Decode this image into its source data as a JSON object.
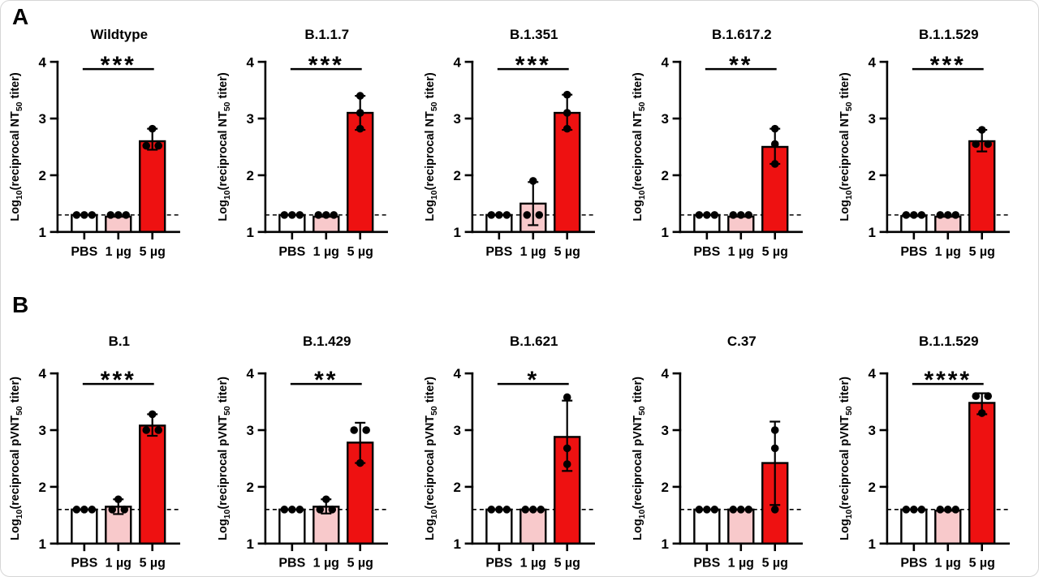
{
  "figure": {
    "background": "#ffffff",
    "sections": [
      {
        "label": "A"
      },
      {
        "label": "B"
      }
    ]
  },
  "colors": {
    "bar_pbs": "#ffffff",
    "bar_1ug": "#f8c9cb",
    "bar_5ug": "#ee1111",
    "axis": "#000000",
    "point": "#000000",
    "dashed_line": "#000000",
    "text": "#000000"
  },
  "chart_data": [
    {
      "row": "A",
      "type": "bar",
      "title": "Wildtype",
      "significance": "***",
      "ylabel": "Log10(reciprocal NT50 titer)",
      "ylabel_parts": [
        {
          "t": "Log",
          "sub": false
        },
        {
          "t": "10",
          "sub": true
        },
        {
          "t": "(reciprocal NT",
          "sub": false
        },
        {
          "t": "50",
          "sub": true
        },
        {
          "t": " titer)",
          "sub": false
        }
      ],
      "ylim": [
        1,
        4
      ],
      "yticks": [
        1,
        2,
        3,
        4
      ],
      "dashed_line_y": 1.3,
      "categories": [
        "PBS",
        "1 µg",
        "5 µg"
      ],
      "bars": [
        {
          "category": "PBS",
          "value": 1.3,
          "fill": "bar_pbs",
          "points": [
            1.3,
            1.3,
            1.3
          ],
          "err": null
        },
        {
          "category": "1 µg",
          "value": 1.27,
          "fill": "bar_1ug",
          "points": [
            1.3,
            1.3,
            1.3
          ],
          "err": null
        },
        {
          "category": "5 µg",
          "value": 2.6,
          "fill": "bar_5ug",
          "points": [
            2.52,
            2.52,
            2.82
          ],
          "err": [
            2.45,
            2.82
          ]
        }
      ]
    },
    {
      "row": "A",
      "type": "bar",
      "title": "B.1.1.7",
      "significance": "***",
      "ylabel": "Log10(reciprocal NT50 titer)",
      "ylabel_parts": [
        {
          "t": "Log",
          "sub": false
        },
        {
          "t": "10",
          "sub": true
        },
        {
          "t": "(reciprocal NT",
          "sub": false
        },
        {
          "t": "50",
          "sub": true
        },
        {
          "t": " titer)",
          "sub": false
        }
      ],
      "ylim": [
        1,
        4
      ],
      "yticks": [
        1,
        2,
        3,
        4
      ],
      "dashed_line_y": 1.3,
      "categories": [
        "PBS",
        "1 µg",
        "5 µg"
      ],
      "bars": [
        {
          "category": "PBS",
          "value": 1.3,
          "fill": "bar_pbs",
          "points": [
            1.3,
            1.3,
            1.3
          ],
          "err": null
        },
        {
          "category": "1 µg",
          "value": 1.27,
          "fill": "bar_1ug",
          "points": [
            1.3,
            1.3,
            1.3
          ],
          "err": null
        },
        {
          "category": "5 µg",
          "value": 3.1,
          "fill": "bar_5ug",
          "points": [
            2.82,
            3.1,
            3.4
          ],
          "err": [
            2.8,
            3.4
          ]
        }
      ]
    },
    {
      "row": "A",
      "type": "bar",
      "title": "B.1.351",
      "significance": "***",
      "ylabel": "Log10(reciprocal NT50 titer)",
      "ylabel_parts": [
        {
          "t": "Log",
          "sub": false
        },
        {
          "t": "10",
          "sub": true
        },
        {
          "t": "(reciprocal NT",
          "sub": false
        },
        {
          "t": "50",
          "sub": true
        },
        {
          "t": " titer)",
          "sub": false
        }
      ],
      "ylim": [
        1,
        4
      ],
      "yticks": [
        1,
        2,
        3,
        4
      ],
      "dashed_line_y": 1.3,
      "categories": [
        "PBS",
        "1 µg",
        "5 µg"
      ],
      "bars": [
        {
          "category": "PBS",
          "value": 1.3,
          "fill": "bar_pbs",
          "points": [
            1.3,
            1.3,
            1.3
          ],
          "err": null
        },
        {
          "category": "1 µg",
          "value": 1.5,
          "fill": "bar_1ug",
          "points": [
            1.3,
            1.3,
            1.9
          ],
          "err": [
            1.12,
            1.88
          ]
        },
        {
          "category": "5 µg",
          "value": 3.1,
          "fill": "bar_5ug",
          "points": [
            2.82,
            3.1,
            3.42
          ],
          "err": [
            2.8,
            3.42
          ]
        }
      ]
    },
    {
      "row": "A",
      "type": "bar",
      "title": "B.1.617.2",
      "significance": "**",
      "ylabel": "Log10(reciprocal NT50 titer)",
      "ylabel_parts": [
        {
          "t": "Log",
          "sub": false
        },
        {
          "t": "10",
          "sub": true
        },
        {
          "t": "(reciprocal NT",
          "sub": false
        },
        {
          "t": "50",
          "sub": true
        },
        {
          "t": " titer)",
          "sub": false
        }
      ],
      "ylim": [
        1,
        4
      ],
      "yticks": [
        1,
        2,
        3,
        4
      ],
      "dashed_line_y": 1.3,
      "categories": [
        "PBS",
        "1 µg",
        "5 µg"
      ],
      "bars": [
        {
          "category": "PBS",
          "value": 1.3,
          "fill": "bar_pbs",
          "points": [
            1.3,
            1.3,
            1.3
          ],
          "err": null
        },
        {
          "category": "1 µg",
          "value": 1.27,
          "fill": "bar_1ug",
          "points": [
            1.3,
            1.3,
            1.3
          ],
          "err": null
        },
        {
          "category": "5 µg",
          "value": 2.5,
          "fill": "bar_5ug",
          "points": [
            2.2,
            2.55,
            2.82
          ],
          "err": [
            2.2,
            2.82
          ]
        }
      ]
    },
    {
      "row": "A",
      "type": "bar",
      "title": "B.1.1.529",
      "significance": "***",
      "ylabel": "Log10(reciprocal NT50 titer)",
      "ylabel_parts": [
        {
          "t": "Log",
          "sub": false
        },
        {
          "t": "10",
          "sub": true
        },
        {
          "t": "(reciprocal NT",
          "sub": false
        },
        {
          "t": "50",
          "sub": true
        },
        {
          "t": " titer)",
          "sub": false
        }
      ],
      "ylim": [
        1,
        4
      ],
      "yticks": [
        1,
        2,
        3,
        4
      ],
      "dashed_line_y": 1.3,
      "categories": [
        "PBS",
        "1 µg",
        "5 µg"
      ],
      "bars": [
        {
          "category": "PBS",
          "value": 1.28,
          "fill": "bar_pbs",
          "points": [
            1.3,
            1.3,
            1.3
          ],
          "err": null
        },
        {
          "category": "1 µg",
          "value": 1.27,
          "fill": "bar_1ug",
          "points": [
            1.3,
            1.3,
            1.3
          ],
          "err": null
        },
        {
          "category": "5 µg",
          "value": 2.6,
          "fill": "bar_5ug",
          "points": [
            2.55,
            2.55,
            2.8
          ],
          "err": [
            2.42,
            2.8
          ]
        }
      ]
    },
    {
      "row": "B",
      "type": "bar",
      "title": "B.1",
      "significance": "***",
      "ylabel": "Log10(reciprocal pVNT50 titer)",
      "ylabel_parts": [
        {
          "t": "Log",
          "sub": false
        },
        {
          "t": "10",
          "sub": true
        },
        {
          "t": "(reciprocal pVNT",
          "sub": false
        },
        {
          "t": "50",
          "sub": true
        },
        {
          "t": " titer)",
          "sub": false
        }
      ],
      "ylim": [
        1,
        4
      ],
      "yticks": [
        1,
        2,
        3,
        4
      ],
      "dashed_line_y": 1.6,
      "categories": [
        "PBS",
        "1 µg",
        "5 µg"
      ],
      "bars": [
        {
          "category": "PBS",
          "value": 1.6,
          "fill": "bar_pbs",
          "points": [
            1.6,
            1.6,
            1.6
          ],
          "err": null
        },
        {
          "category": "1 µg",
          "value": 1.65,
          "fill": "bar_1ug",
          "points": [
            1.6,
            1.6,
            1.78
          ],
          "err": [
            1.52,
            1.78
          ]
        },
        {
          "category": "5 µg",
          "value": 3.08,
          "fill": "bar_5ug",
          "points": [
            3.0,
            3.0,
            3.28
          ],
          "err": [
            2.9,
            3.28
          ]
        }
      ]
    },
    {
      "row": "B",
      "type": "bar",
      "title": "B.1.429",
      "significance": "**",
      "ylabel": "Log10(reciprocal pVNT50 titer)",
      "ylabel_parts": [
        {
          "t": "Log",
          "sub": false
        },
        {
          "t": "10",
          "sub": true
        },
        {
          "t": "(reciprocal pVNT",
          "sub": false
        },
        {
          "t": "50",
          "sub": true
        },
        {
          "t": " titer)",
          "sub": false
        }
      ],
      "ylim": [
        1,
        4
      ],
      "yticks": [
        1,
        2,
        3,
        4
      ],
      "dashed_line_y": 1.6,
      "categories": [
        "PBS",
        "1 µg",
        "5 µg"
      ],
      "bars": [
        {
          "category": "PBS",
          "value": 1.6,
          "fill": "bar_pbs",
          "points": [
            1.6,
            1.6,
            1.6
          ],
          "err": null
        },
        {
          "category": "1 µg",
          "value": 1.65,
          "fill": "bar_1ug",
          "points": [
            1.6,
            1.6,
            1.78
          ],
          "err": [
            1.53,
            1.78
          ]
        },
        {
          "category": "5 µg",
          "value": 2.78,
          "fill": "bar_5ug",
          "points": [
            2.42,
            3.0,
            3.0
          ],
          "err": [
            2.42,
            3.13
          ]
        }
      ]
    },
    {
      "row": "B",
      "type": "bar",
      "title": "B.1.621",
      "significance": "*",
      "ylabel": "Log10(reciprocal pVNT50 titer)",
      "ylabel_parts": [
        {
          "t": "Log",
          "sub": false
        },
        {
          "t": "10",
          "sub": true
        },
        {
          "t": "(reciprocal pVNT",
          "sub": false
        },
        {
          "t": "50",
          "sub": true
        },
        {
          "t": " titer)",
          "sub": false
        }
      ],
      "ylim": [
        1,
        4
      ],
      "yticks": [
        1,
        2,
        3,
        4
      ],
      "dashed_line_y": 1.6,
      "categories": [
        "PBS",
        "1 µg",
        "5 µg"
      ],
      "bars": [
        {
          "category": "PBS",
          "value": 1.6,
          "fill": "bar_pbs",
          "points": [
            1.6,
            1.6,
            1.6
          ],
          "err": null
        },
        {
          "category": "1 µg",
          "value": 1.6,
          "fill": "bar_1ug",
          "points": [
            1.6,
            1.6,
            1.6
          ],
          "err": null
        },
        {
          "category": "5 µg",
          "value": 2.88,
          "fill": "bar_5ug",
          "points": [
            2.4,
            2.68,
            3.58
          ],
          "err": [
            2.28,
            3.52
          ]
        }
      ]
    },
    {
      "row": "B",
      "type": "bar",
      "title": "C.37",
      "significance": null,
      "ylabel": "Log10(reciprocal pVNT50 titer)",
      "ylabel_parts": [
        {
          "t": "Log",
          "sub": false
        },
        {
          "t": "10",
          "sub": true
        },
        {
          "t": "(reciprocal pVNT",
          "sub": false
        },
        {
          "t": "50",
          "sub": true
        },
        {
          "t": " titer)",
          "sub": false
        }
      ],
      "ylim": [
        1,
        4
      ],
      "yticks": [
        1,
        2,
        3,
        4
      ],
      "dashed_line_y": 1.6,
      "categories": [
        "PBS",
        "1 µg",
        "5 µg"
      ],
      "bars": [
        {
          "category": "PBS",
          "value": 1.6,
          "fill": "bar_pbs",
          "points": [
            1.6,
            1.6,
            1.6
          ],
          "err": null
        },
        {
          "category": "1 µg",
          "value": 1.6,
          "fill": "bar_1ug",
          "points": [
            1.6,
            1.6,
            1.6
          ],
          "err": null
        },
        {
          "category": "5 µg",
          "value": 2.42,
          "fill": "bar_5ug",
          "points": [
            1.6,
            2.68,
            3.0
          ],
          "err": [
            1.68,
            3.15
          ]
        }
      ]
    },
    {
      "row": "B",
      "type": "bar",
      "title": "B.1.1.529",
      "significance": "****",
      "ylabel": "Log10(reciprocal pVNT50 titer)",
      "ylabel_parts": [
        {
          "t": "Log",
          "sub": false
        },
        {
          "t": "10",
          "sub": true
        },
        {
          "t": "(reciprocal pVNT",
          "sub": false
        },
        {
          "t": "50",
          "sub": true
        },
        {
          "t": " titer)",
          "sub": false
        }
      ],
      "ylim": [
        1,
        4
      ],
      "yticks": [
        1,
        2,
        3,
        4
      ],
      "dashed_line_y": 1.6,
      "categories": [
        "PBS",
        "1 µg",
        "5 µg"
      ],
      "bars": [
        {
          "category": "PBS",
          "value": 1.6,
          "fill": "bar_pbs",
          "points": [
            1.6,
            1.6,
            1.6
          ],
          "err": null
        },
        {
          "category": "1 µg",
          "value": 1.58,
          "fill": "bar_1ug",
          "points": [
            1.6,
            1.6,
            1.6
          ],
          "err": null
        },
        {
          "category": "5 µg",
          "value": 3.48,
          "fill": "bar_5ug",
          "points": [
            3.3,
            3.6,
            3.6
          ],
          "err": [
            3.28,
            3.65
          ]
        }
      ]
    }
  ]
}
